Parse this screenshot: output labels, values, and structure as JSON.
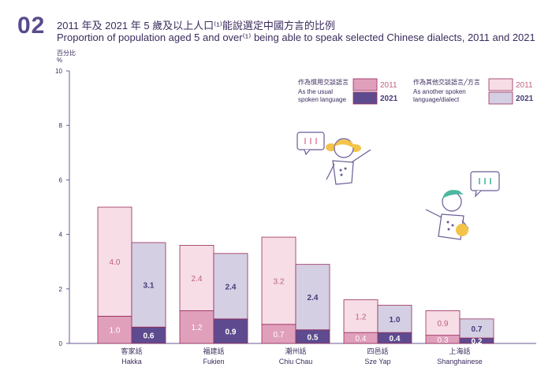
{
  "figure": {
    "number": "02",
    "title_cn": "2011 年及 2021 年 5 歲及以上人口⁽¹⁾能說選定中國方言的比例",
    "title_en": "Proportion of population aged 5 and over⁽¹⁾ being able to speak selected Chinese dialects, 2011 and 2021",
    "unit_cn": "百分比",
    "unit_symbol": "%"
  },
  "legend": {
    "usual_label_cn": "作為慣用交談語言",
    "usual_label_en_1": "As the usual",
    "usual_label_en_2": "spoken language",
    "other_label_cn": "作為其他交談語言╱方言",
    "other_label_en_1": "As another spoken",
    "other_label_en_2": "language/dialect",
    "year_2011": "2011",
    "year_2021": "2021"
  },
  "colors": {
    "usual_2011": "#e0a0bc",
    "usual_2021": "#5e4b8f",
    "other_2011": "#f6dde6",
    "other_2021": "#d4cfe2",
    "bar_border": "#9a2a5a",
    "axis": "#6b5a95",
    "gridline": "#9b8fc0",
    "label_usual_2011": "#ffffff",
    "label_other_2011": "#c0607e",
    "label_2021": "#4a3a7a"
  },
  "chart_data": {
    "type": "bar",
    "stacked": true,
    "categories": [
      {
        "cn": "客家話",
        "en": "Hakka"
      },
      {
        "cn": "福建話",
        "en": "Fukien"
      },
      {
        "cn": "潮州話",
        "en": "Chiu Chau"
      },
      {
        "cn": "四邑話",
        "en": "Sze Yap"
      },
      {
        "cn": "上海話",
        "en": "Shanghainese"
      }
    ],
    "series": [
      {
        "name": "2011 As the usual spoken language",
        "year": "2011",
        "kind": "usual",
        "values": [
          1.0,
          1.2,
          0.7,
          0.4,
          0.3
        ]
      },
      {
        "name": "2011 As another spoken language/dialect",
        "year": "2011",
        "kind": "other",
        "values": [
          4.0,
          2.4,
          3.2,
          1.2,
          0.9
        ]
      },
      {
        "name": "2021 As the usual spoken language",
        "year": "2021",
        "kind": "usual",
        "values": [
          0.6,
          0.9,
          0.5,
          0.4,
          0.2
        ]
      },
      {
        "name": "2021 As another spoken language/dialect",
        "year": "2021",
        "kind": "other",
        "values": [
          3.1,
          2.4,
          2.4,
          1.0,
          0.7
        ]
      }
    ],
    "ylim": [
      0,
      10
    ],
    "yticks": [
      0,
      2,
      4,
      6,
      8,
      10
    ],
    "ylabel": "%",
    "grid": false
  }
}
